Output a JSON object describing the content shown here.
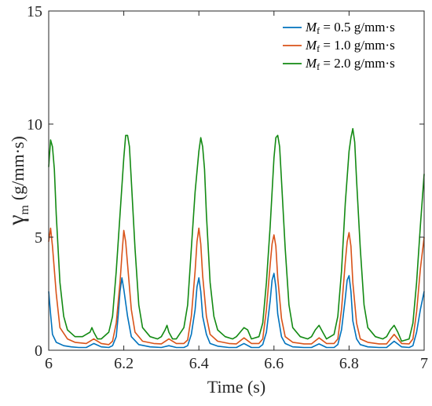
{
  "chart_data": {
    "type": "line",
    "xlabel": "Time (s)",
    "ylabel": {
      "symbol": "γ",
      "subscript": "m",
      "units": "(g/mm·s)"
    },
    "xlim": [
      6,
      7
    ],
    "ylim": [
      0,
      15
    ],
    "x_ticks": [
      "6",
      "6.2",
      "6.4",
      "6.6",
      "6.8",
      "7"
    ],
    "y_ticks": [
      "0",
      "5",
      "10",
      "15"
    ],
    "x_tick_values": [
      6,
      6.2,
      6.4,
      6.6,
      6.8,
      7
    ],
    "y_tick_values": [
      0,
      5,
      10,
      15
    ],
    "grid": false,
    "legend_position": "top-right",
    "series": [
      {
        "name": "Mf = 0.5 g/mm·s",
        "legend": {
          "symbol": "M",
          "subscript": "f",
          "value": " = 0.5 g/mm·s"
        },
        "color": "#0072BD",
        "x": [
          6.0,
          6.005,
          6.01,
          6.02,
          6.04,
          6.06,
          6.08,
          6.1,
          6.12,
          6.14,
          6.16,
          6.17,
          6.18,
          6.185,
          6.19,
          6.195,
          6.2,
          6.21,
          6.22,
          6.24,
          6.27,
          6.3,
          6.32,
          6.34,
          6.36,
          6.37,
          6.38,
          6.39,
          6.395,
          6.4,
          6.405,
          6.41,
          6.42,
          6.43,
          6.45,
          6.48,
          6.5,
          6.52,
          6.54,
          6.56,
          6.57,
          6.58,
          6.59,
          6.595,
          6.6,
          6.605,
          6.61,
          6.62,
          6.63,
          6.65,
          6.68,
          6.7,
          6.72,
          6.74,
          6.76,
          6.77,
          6.78,
          6.79,
          6.795,
          6.8,
          6.805,
          6.81,
          6.82,
          6.83,
          6.85,
          6.88,
          6.9,
          6.92,
          6.94,
          6.96,
          6.97,
          6.98,
          6.99,
          7.0
        ],
        "y": [
          2.6,
          1.6,
          0.7,
          0.35,
          0.2,
          0.15,
          0.12,
          0.12,
          0.3,
          0.15,
          0.12,
          0.2,
          0.6,
          1.5,
          2.6,
          3.2,
          2.7,
          1.5,
          0.6,
          0.25,
          0.15,
          0.12,
          0.2,
          0.12,
          0.12,
          0.2,
          0.7,
          1.8,
          2.8,
          3.2,
          2.6,
          1.5,
          0.7,
          0.3,
          0.18,
          0.12,
          0.12,
          0.3,
          0.12,
          0.12,
          0.25,
          0.8,
          2.2,
          3.1,
          3.4,
          2.8,
          1.6,
          0.6,
          0.3,
          0.15,
          0.12,
          0.12,
          0.28,
          0.12,
          0.12,
          0.25,
          0.9,
          2.3,
          3.1,
          3.3,
          2.6,
          1.3,
          0.5,
          0.25,
          0.15,
          0.12,
          0.12,
          0.4,
          0.15,
          0.12,
          0.2,
          0.8,
          1.8,
          2.6
        ]
      },
      {
        "name": "Mf = 1.0 g/mm·s",
        "legend": {
          "symbol": "M",
          "subscript": "f",
          "value": " = 1.0 g/mm·s"
        },
        "color": "#D95319",
        "x": [
          6.0,
          6.005,
          6.01,
          6.02,
          6.03,
          6.05,
          6.07,
          6.1,
          6.12,
          6.14,
          6.16,
          6.17,
          6.18,
          6.19,
          6.195,
          6.2,
          6.205,
          6.21,
          6.22,
          6.23,
          6.25,
          6.28,
          6.3,
          6.32,
          6.34,
          6.36,
          6.37,
          6.38,
          6.39,
          6.395,
          6.4,
          6.405,
          6.41,
          6.42,
          6.43,
          6.45,
          6.48,
          6.5,
          6.52,
          6.54,
          6.56,
          6.57,
          6.58,
          6.59,
          6.595,
          6.6,
          6.605,
          6.61,
          6.62,
          6.63,
          6.65,
          6.68,
          6.7,
          6.72,
          6.74,
          6.76,
          6.77,
          6.78,
          6.79,
          6.795,
          6.8,
          6.805,
          6.81,
          6.82,
          6.83,
          6.85,
          6.88,
          6.9,
          6.92,
          6.94,
          6.96,
          6.97,
          6.98,
          6.99,
          7.0
        ],
        "y": [
          4.8,
          5.4,
          4.6,
          2.5,
          1.0,
          0.5,
          0.35,
          0.3,
          0.5,
          0.3,
          0.25,
          0.4,
          1.2,
          3.0,
          4.2,
          5.3,
          4.8,
          3.8,
          1.8,
          0.8,
          0.4,
          0.3,
          0.28,
          0.5,
          0.3,
          0.3,
          0.45,
          1.5,
          3.5,
          4.8,
          5.4,
          4.7,
          3.3,
          1.5,
          0.7,
          0.4,
          0.3,
          0.28,
          0.55,
          0.3,
          0.3,
          0.5,
          1.8,
          3.8,
          4.7,
          5.1,
          4.6,
          3.2,
          1.4,
          0.6,
          0.35,
          0.28,
          0.28,
          0.55,
          0.3,
          0.3,
          0.5,
          1.8,
          3.9,
          4.8,
          5.2,
          4.6,
          3.0,
          1.2,
          0.5,
          0.35,
          0.28,
          0.28,
          0.7,
          0.3,
          0.28,
          0.5,
          1.7,
          3.6,
          5.0
        ]
      },
      {
        "name": "Mf = 2.0 g/mm·s",
        "legend": {
          "symbol": "M",
          "subscript": "f",
          "value": " = 2.0 g/mm·s"
        },
        "color": "#138A13",
        "x": [
          6.0,
          6.005,
          6.01,
          6.015,
          6.02,
          6.03,
          6.04,
          6.05,
          6.07,
          6.09,
          6.1,
          6.11,
          6.115,
          6.12,
          6.13,
          6.14,
          6.16,
          6.17,
          6.18,
          6.19,
          6.2,
          6.205,
          6.21,
          6.215,
          6.22,
          6.23,
          6.24,
          6.25,
          6.27,
          6.29,
          6.3,
          6.31,
          6.315,
          6.32,
          6.33,
          6.34,
          6.36,
          6.37,
          6.38,
          6.39,
          6.4,
          6.405,
          6.41,
          6.415,
          6.42,
          6.43,
          6.44,
          6.45,
          6.47,
          6.49,
          6.5,
          6.51,
          6.52,
          6.53,
          6.54,
          6.56,
          6.57,
          6.58,
          6.59,
          6.6,
          6.605,
          6.61,
          6.615,
          6.62,
          6.63,
          6.64,
          6.65,
          6.67,
          6.69,
          6.7,
          6.71,
          6.72,
          6.73,
          6.74,
          6.76,
          6.77,
          6.78,
          6.79,
          6.8,
          6.805,
          6.81,
          6.815,
          6.82,
          6.83,
          6.84,
          6.85,
          6.87,
          6.89,
          6.9,
          6.91,
          6.92,
          6.93,
          6.94,
          6.96,
          6.97,
          6.98,
          6.99,
          7.0
        ],
        "y": [
          8.1,
          9.3,
          9.0,
          8.0,
          6.0,
          3.0,
          1.5,
          0.9,
          0.6,
          0.6,
          0.7,
          0.8,
          1.0,
          0.8,
          0.5,
          0.5,
          0.8,
          1.5,
          3.5,
          6.0,
          8.5,
          9.5,
          9.5,
          9.0,
          7.5,
          4.5,
          2.0,
          1.0,
          0.6,
          0.5,
          0.6,
          0.9,
          1.1,
          0.8,
          0.5,
          0.5,
          1.0,
          2.0,
          4.5,
          7.0,
          8.8,
          9.4,
          9.0,
          8.0,
          6.0,
          3.0,
          1.5,
          0.9,
          0.6,
          0.5,
          0.6,
          0.8,
          1.0,
          0.9,
          0.5,
          0.6,
          1.2,
          3.0,
          5.5,
          8.5,
          9.4,
          9.5,
          9.0,
          7.5,
          4.5,
          2.0,
          1.0,
          0.6,
          0.5,
          0.6,
          0.9,
          1.1,
          0.8,
          0.5,
          0.7,
          1.5,
          3.5,
          6.5,
          8.8,
          9.4,
          9.8,
          9.2,
          7.5,
          4.5,
          2.0,
          1.0,
          0.6,
          0.5,
          0.6,
          0.9,
          1.1,
          0.8,
          0.4,
          0.5,
          1.2,
          3.0,
          5.5,
          7.8
        ]
      }
    ]
  }
}
